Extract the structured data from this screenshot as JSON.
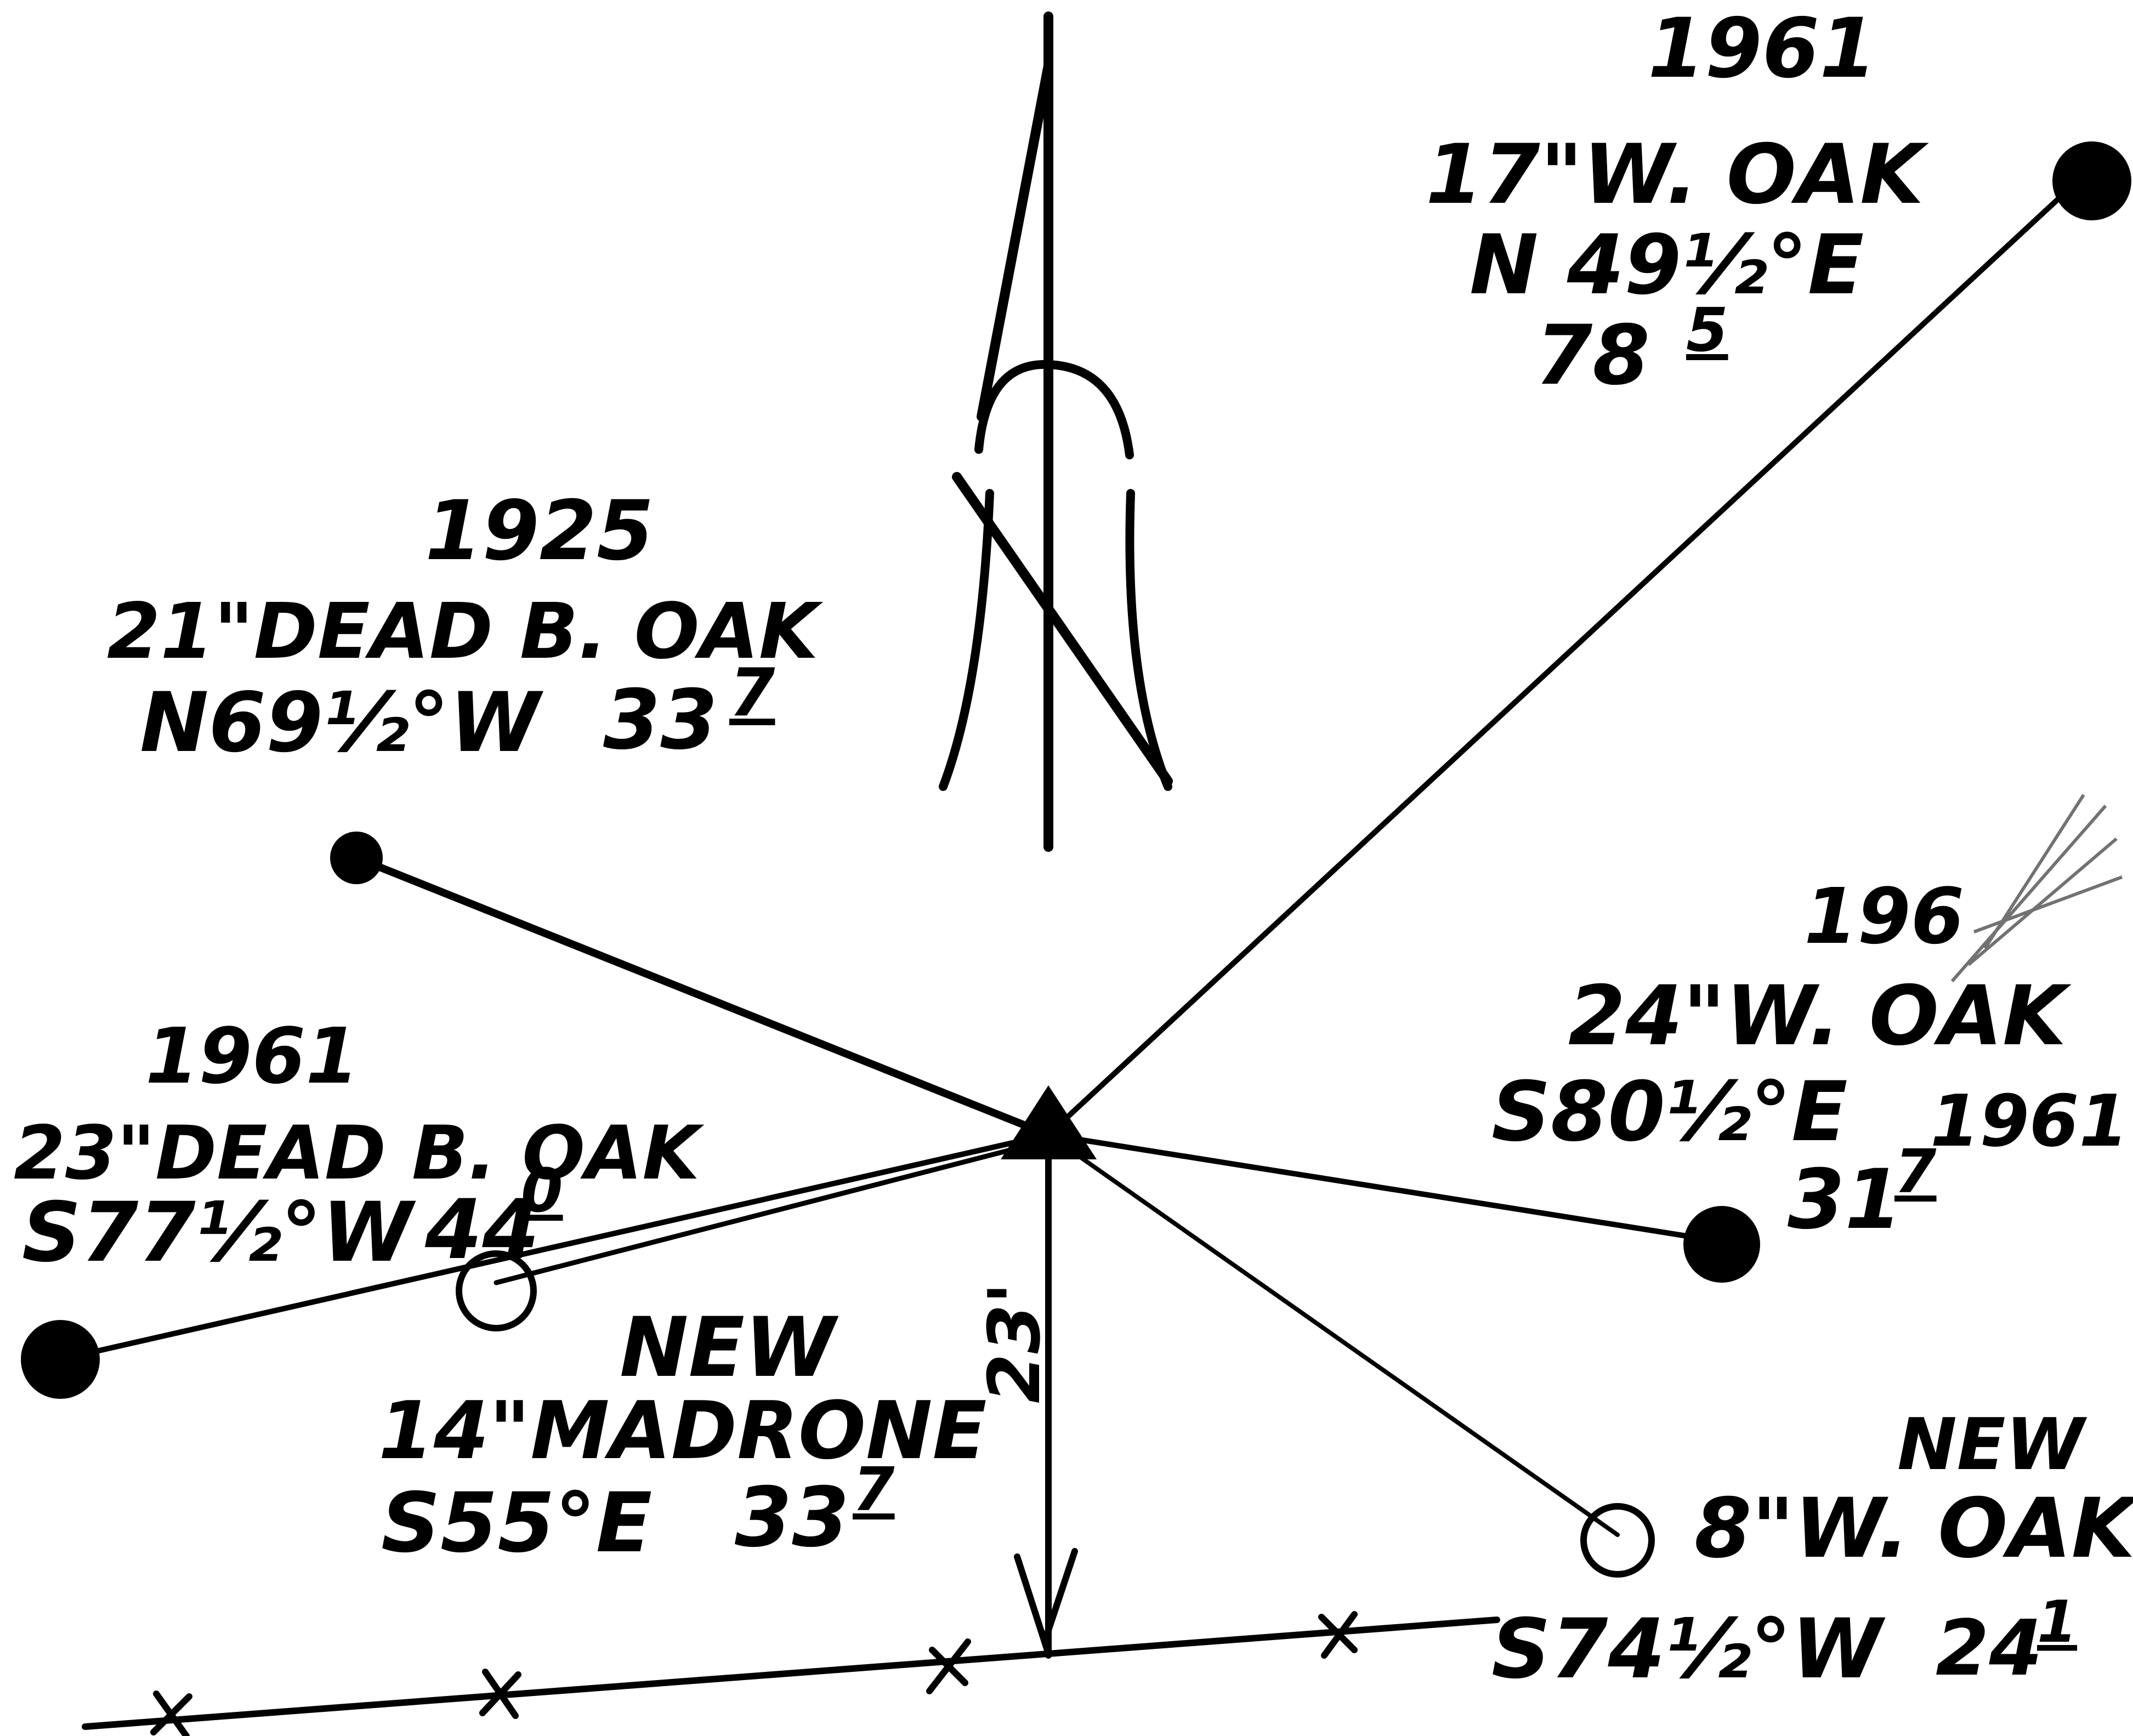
{
  "colors": {
    "ink": "#000000",
    "paper": "#ffffff"
  },
  "north_arrow": {
    "letter_icon": "north-arrow-icon"
  },
  "station": {
    "icon": "filled-triangle-icon"
  },
  "offset": {
    "label": "23'"
  },
  "bearing_trees": [
    {
      "id": "ne",
      "year": "1961",
      "desc": "17\"W. OAK",
      "bearing": "N 49½°E",
      "dist": "78",
      "dist_sup": "5",
      "marker": "filled-circle-icon"
    },
    {
      "id": "nw",
      "year": "1925",
      "desc": "21\"DEAD B. OAK",
      "bearing": "N69½°W",
      "dist": "33",
      "dist_sup": "7",
      "marker": "filled-circle-icon"
    },
    {
      "id": "sw",
      "year": "1961",
      "desc": "23\"DEAD B. OAK",
      "bearing": "S77½°W",
      "dist": "44",
      "dist_sup": "0",
      "marker": "filled-circle-icon"
    },
    {
      "id": "e",
      "year": "196",
      "desc": "24\"W. OAK",
      "bearing": "S80½°E",
      "dist": "31",
      "dist_sup": "7",
      "extra_year": "1961",
      "marker": "filled-circle-icon"
    },
    {
      "id": "new-madrone",
      "status": "NEW",
      "desc": "14\"MADRONE",
      "bearing": "S55°E",
      "dist": "33",
      "dist_sup": "7",
      "marker": "hollow-circle-icon"
    },
    {
      "id": "new-oak",
      "status": "NEW",
      "desc": "8\"W. OAK",
      "bearing": "S74½°W",
      "dist": "24",
      "dist_sup": "1",
      "marker": "hollow-circle-icon"
    }
  ]
}
